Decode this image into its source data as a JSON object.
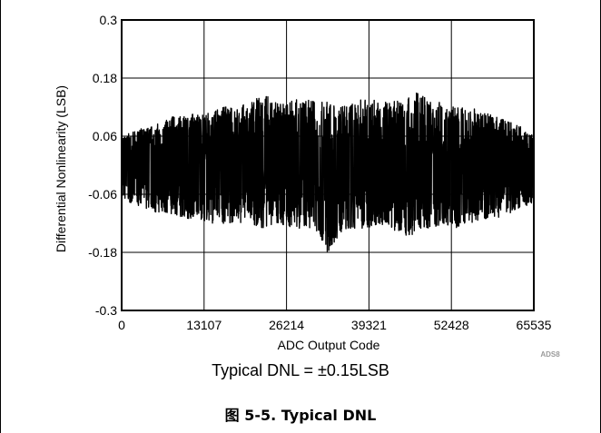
{
  "chart_data": {
    "type": "line",
    "title": "",
    "xlabel": "ADC Output Code",
    "ylabel": "Differential Nonlinearity (LSB)",
    "xlim": [
      0,
      65535
    ],
    "ylim": [
      -0.3,
      0.3
    ],
    "x_ticks": [
      0,
      13107,
      26214,
      39321,
      52428,
      65535
    ],
    "x_tick_labels": [
      "0",
      "13107",
      "26214",
      "39321",
      "52428",
      "65535"
    ],
    "y_ticks": [
      0.3,
      0.18,
      0.06,
      -0.06,
      -0.18,
      -0.3
    ],
    "y_tick_labels": [
      "0.3",
      "0.18",
      "0.06",
      "-0.06",
      "-0.18",
      "-0.3"
    ],
    "grid": true,
    "series": [
      {
        "color": "#000000",
        "x": [
          0,
          2048,
          4096,
          6144,
          8192,
          10240,
          12288,
          14336,
          16384,
          18432,
          20480,
          22528,
          24576,
          26624,
          28672,
          30720,
          32768,
          34816,
          36864,
          38912,
          40960,
          43008,
          45056,
          47104,
          49152,
          51200,
          53248,
          55296,
          57344,
          59392,
          61440,
          63488,
          65535
        ],
        "upper": [
          0.06,
          0.07,
          0.08,
          0.09,
          0.1,
          0.1,
          0.11,
          0.11,
          0.12,
          0.12,
          0.13,
          0.15,
          0.13,
          0.13,
          0.14,
          0.13,
          0.13,
          0.12,
          0.13,
          0.14,
          0.13,
          0.13,
          0.14,
          0.15,
          0.13,
          0.13,
          0.12,
          0.12,
          0.11,
          0.1,
          0.09,
          0.08,
          0.06
        ],
        "lower": [
          -0.07,
          -0.08,
          -0.09,
          -0.1,
          -0.1,
          -0.11,
          -0.11,
          -0.12,
          -0.12,
          -0.12,
          -0.12,
          -0.13,
          -0.12,
          -0.13,
          -0.13,
          -0.13,
          -0.18,
          -0.14,
          -0.13,
          -0.13,
          -0.12,
          -0.13,
          -0.16,
          -0.13,
          -0.13,
          -0.12,
          -0.13,
          -0.12,
          -0.11,
          -0.11,
          -0.1,
          -0.09,
          -0.08
        ]
      }
    ]
  },
  "watermark": "ADS8",
  "caption": "Typical DNL = ±0.15LSB",
  "figure_title": "图 5-5. Typical DNL"
}
